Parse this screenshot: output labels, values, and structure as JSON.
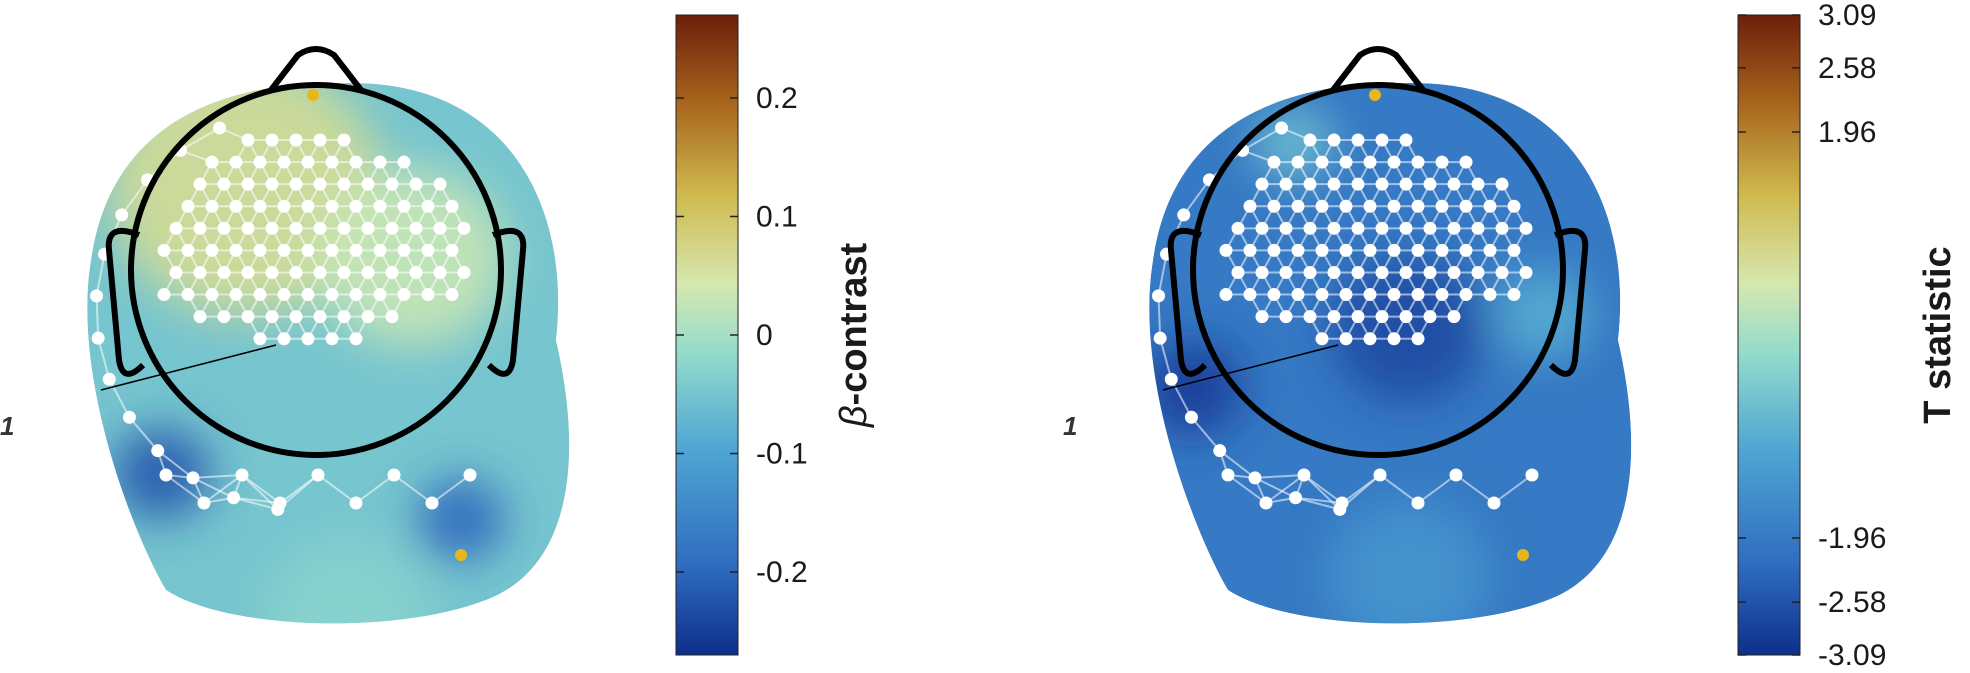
{
  "chart_data": [
    {
      "type": "heatmap",
      "subtype": "sensor-topography",
      "title": "",
      "side_marker": "1",
      "colorbar": {
        "label_greek": "β",
        "label_text": "-contrast",
        "range": [
          -0.27,
          0.27
        ],
        "ticks": [
          0.2,
          0.1,
          0,
          -0.1,
          -0.2
        ],
        "tick_labels": [
          "0.2",
          "0.1",
          "0",
          "-0.1",
          "-0.2"
        ]
      },
      "map_base_value": -0.07,
      "map_blobs": [
        {
          "u": 0.35,
          "v": 0.2,
          "value": 0.06,
          "spread": 0.5
        },
        {
          "u": 0.68,
          "v": 0.32,
          "value": 0.02,
          "spread": 0.35
        },
        {
          "u": 0.18,
          "v": 0.7,
          "value": -0.22,
          "spread": 0.18
        },
        {
          "u": 0.78,
          "v": 0.78,
          "value": -0.2,
          "spread": 0.16
        },
        {
          "u": 0.55,
          "v": 0.95,
          "value": -0.05,
          "spread": 0.3
        }
      ],
      "accent_color": "#e8b61a"
    },
    {
      "type": "heatmap",
      "subtype": "sensor-topography",
      "title": "",
      "side_marker": "1",
      "colorbar": {
        "label_text": "T statistic",
        "range": [
          -3.09,
          3.09
        ],
        "ticks": [
          3.09,
          2.58,
          1.96,
          -1.96,
          -2.58,
          -3.09
        ],
        "tick_labels": [
          "3.09",
          "2.58",
          "1.96",
          "-1.96",
          "-2.58",
          "-3.09"
        ]
      },
      "map_base_value": -2.0,
      "map_blobs": [
        {
          "u": 0.32,
          "v": 0.12,
          "value": -0.9,
          "spread": 0.15
        },
        {
          "u": 0.82,
          "v": 0.42,
          "value": -1.2,
          "spread": 0.18
        },
        {
          "u": 0.55,
          "v": 0.45,
          "value": -2.7,
          "spread": 0.28
        },
        {
          "u": 0.12,
          "v": 0.55,
          "value": -2.9,
          "spread": 0.18
        },
        {
          "u": 0.55,
          "v": 0.88,
          "value": -1.6,
          "spread": 0.3
        }
      ],
      "accent_color": "#e8b61a"
    }
  ],
  "colormap": [
    "#0e2f8b",
    "#2e6cc0",
    "#4fa5d3",
    "#92dbcc",
    "#d6e8ae",
    "#cfb94e",
    "#a8661d",
    "#6d1f0a"
  ]
}
